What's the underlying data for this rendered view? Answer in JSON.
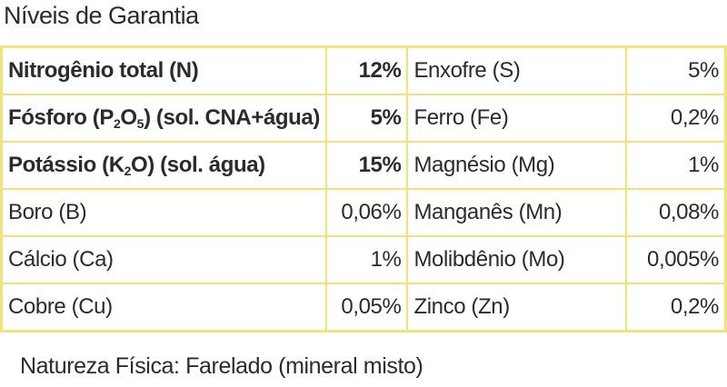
{
  "title": "Níveis de Garantia",
  "table": {
    "rows": [
      [
        "Nitrogênio total (N)",
        "12%",
        "Enxofre (S)",
        "5%"
      ],
      [
        "Fósforo (P2O5) (sol. CNA+água)",
        "5%",
        "Ferro (Fe)",
        "0,2%"
      ],
      [
        "Potássio (K2O) (sol. água)",
        "15%",
        "Magnésio (Mg)",
        "1%"
      ],
      [
        "Boro (B)",
        "0,06%",
        "Manganês (Mn)",
        "0,08%"
      ],
      [
        "Cálcio (Ca)",
        "1%",
        "Molibdênio (Mo)",
        "0,005%"
      ],
      [
        "Cobre (Cu)",
        "0,05%",
        "Zinco (Zn)",
        "0,2%"
      ]
    ]
  },
  "footer": "Natureza Física: Farelado (mineral misto)"
}
